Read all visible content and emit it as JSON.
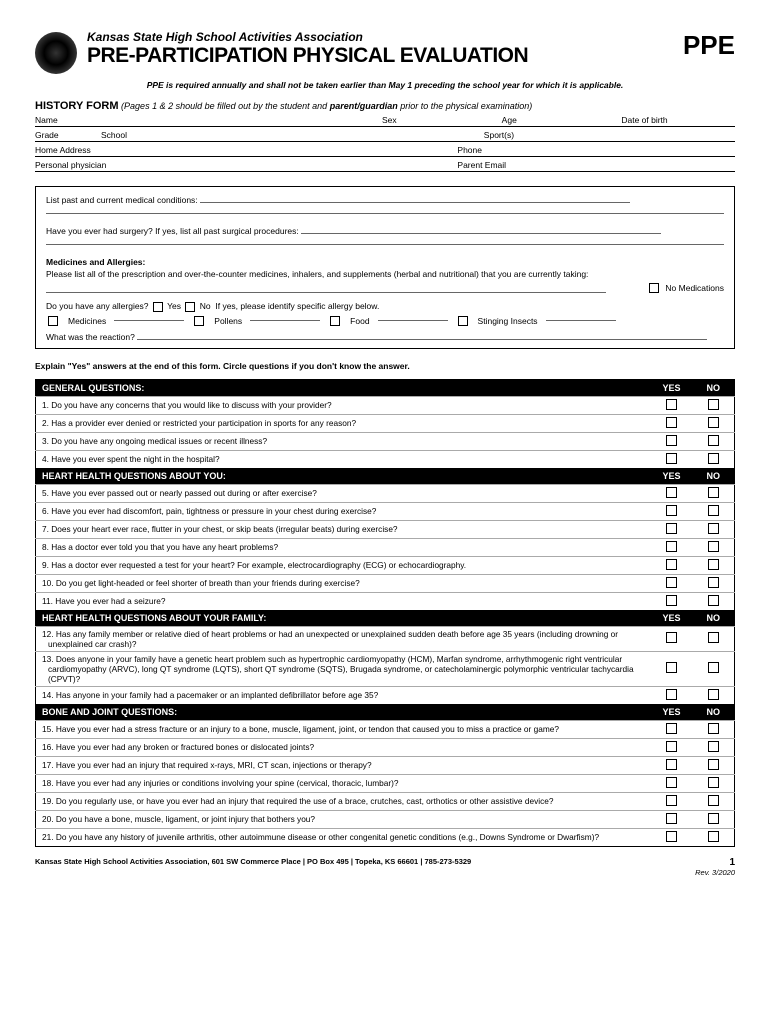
{
  "header": {
    "org": "Kansas State High School Activities Association",
    "title": "PRE-PARTICIPATION PHYSICAL EVALUATION",
    "badge": "PPE",
    "disclaimer": "PPE is required annually and shall not be taken earlier than May 1 preceding the school year for which it is applicable."
  },
  "history": {
    "heading": "HISTORY FORM",
    "sub_pre": "(Pages 1 & 2 should be filled out by the student and ",
    "sub_bold": "parent/guardian",
    "sub_post": " prior to the physical examination)"
  },
  "info": {
    "name": "Name",
    "sex": "Sex",
    "age": "Age",
    "dob": "Date of birth",
    "grade": "Grade",
    "school": "School",
    "sports": "Sport(s)",
    "address": "Home Address",
    "phone": "Phone",
    "physician": "Personal physician",
    "parent_email": "Parent Email"
  },
  "medbox": {
    "past_cond": "List past and current medical conditions:",
    "surgery": "Have you ever had surgery?  If yes, list all past surgical procedures:",
    "med_allergy_hdr": "Medicines and Allergies:",
    "med_text": "Please list all of the prescription and over-the-counter medicines, inhalers, and supplements (herbal and nutritional) that you are currently taking:",
    "no_meds": "No Medications",
    "allergy_q": "Do you have any allergies?",
    "yes": "Yes",
    "no": "No",
    "allergy_post": "If yes, please identify specific allergy below.",
    "a_med": "Medicines",
    "a_pollen": "Pollens",
    "a_food": "Food",
    "a_sting": "Stinging Insects",
    "reaction": "What was the reaction?"
  },
  "explain": "Explain \"Yes\" answers at the end of this form.  Circle questions if you don't know the answer.",
  "yes": "YES",
  "no": "NO",
  "sections": [
    {
      "title": "GENERAL QUESTIONS:",
      "questions": [
        "1.  Do you have any concerns that you would like to discuss with your provider?",
        "2.  Has a provider ever denied or restricted your participation in sports for any reason?",
        "3.  Do you have any ongoing medical issues or recent illness?",
        "4.  Have you ever spent the night in the hospital?"
      ]
    },
    {
      "title": "HEART HEALTH QUESTIONS ABOUT YOU:",
      "questions": [
        "5.  Have you ever passed out or nearly passed out during or after exercise?",
        "6.  Have you ever had discomfort, pain, tightness or pressure in your chest during exercise?",
        "7.  Does your heart ever race, flutter in your chest, or skip beats (irregular beats) during exercise?",
        "8.  Has a doctor ever told you that you have any heart problems?",
        "9.  Has a doctor ever requested a test for your heart?  For example, electrocardiography (ECG) or echocardiography.",
        "10. Do you get light-headed or feel shorter of breath than your friends during exercise?",
        "11. Have you ever had a seizure?"
      ]
    },
    {
      "title": "HEART HEALTH QUESTIONS ABOUT YOUR FAMILY:",
      "questions": [
        "12. Has any family member or relative died of heart problems or had an unexpected or unexplained sudden death before age 35 years (including drowning or unexplained car crash)?",
        "13. Does anyone in your family have a genetic heart problem such as hypertrophic cardiomyopathy (HCM), Marfan syndrome, arrhythmogenic right ventricular cardiomyopathy (ARVC), long QT syndrome (LQTS), short QT syndrome (SQTS), Brugada syndrome, or catecholaminergic polymorphic ventricular tachycardia (CPVT)?",
        "14. Has anyone in your family had a pacemaker or an implanted defibrillator before age 35?"
      ]
    },
    {
      "title": "BONE AND JOINT QUESTIONS:",
      "questions": [
        "15. Have you ever had a stress fracture or an injury to a bone, muscle, ligament, joint, or tendon that caused you to miss a practice or game?",
        "16. Have you ever had any broken or fractured bones or dislocated joints?",
        "17. Have you ever had an injury that required x-rays, MRI, CT scan, injections or therapy?",
        "18. Have you ever had any injuries or conditions involving your spine (cervical, thoracic, lumbar)?",
        "19. Do you regularly use, or have you ever had an injury that required the use of a brace, crutches, cast, orthotics or other assistive device?",
        "20. Do you have a bone, muscle, ligament, or joint injury that bothers you?",
        "21. Do you have any history of juvenile arthritis, other autoimmune disease or other congenital genetic conditions (e.g., Downs Syndrome or Dwarfism)?"
      ]
    }
  ],
  "footer": {
    "left": "Kansas State High School Activities Association, 601 SW Commerce Place  |  PO Box 495  |  Topeka, KS 66601  |  785-273-5329",
    "page": "1",
    "rev": "Rev. 3/2020"
  }
}
